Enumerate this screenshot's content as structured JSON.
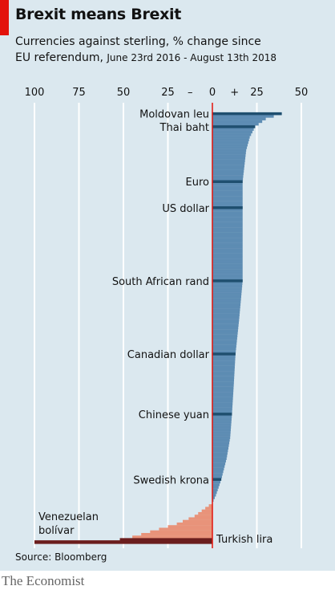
{
  "brand_color": "#e3120b",
  "gain_color": "#5d8cb3",
  "loss_color": "#e8937a",
  "highlight_gain_color": "#1f4f6f",
  "highlight_loss_color": "#6b1e1e",
  "footer": {
    "source": "Source: Bloomberg",
    "brand": "The Economist"
  },
  "chart_data": {
    "type": "bar",
    "title": "Brexit means Brexit",
    "subtitle": "Currencies against sterling, % change since",
    "subtitle_line2": "EU referendum,",
    "date_range": "June 23rd 2016 - August 13th 2018",
    "orientation": "horizontal",
    "sorted": "descending",
    "xlim": [
      -100,
      50
    ],
    "xticks": [
      -100,
      -75,
      -50,
      -25,
      0,
      25,
      50
    ],
    "xtick_labels": [
      "100",
      "75",
      "50",
      "25",
      "0",
      "25",
      "50"
    ],
    "sign_labels": [
      "–",
      "+"
    ],
    "grid": true,
    "bar_count": 165,
    "highlighted": [
      {
        "label": "Moldovan leu",
        "value": 39,
        "rank": 1
      },
      {
        "label": "Thai baht",
        "value": 24,
        "rank": 6
      },
      {
        "label": "Euro",
        "value": 17,
        "rank": 27
      },
      {
        "label": "US dollar",
        "value": 17,
        "rank": 37
      },
      {
        "label": "South African rand",
        "value": 17,
        "rank": 65
      },
      {
        "label": "Canadian dollar",
        "value": 13,
        "rank": 93
      },
      {
        "label": "Chinese yuan",
        "value": 11,
        "rank": 116
      },
      {
        "label": "Swedish krona",
        "value": 5,
        "rank": 141
      },
      {
        "label": "Turkish lira",
        "value": -52,
        "rank": 164
      },
      {
        "label": "Venezuelan bolívar",
        "value": -100,
        "rank": 165
      }
    ],
    "anchors": [
      [
        1,
        39
      ],
      [
        3,
        30
      ],
      [
        6,
        24
      ],
      [
        10,
        21
      ],
      [
        15,
        19
      ],
      [
        27,
        17
      ],
      [
        37,
        17
      ],
      [
        50,
        17
      ],
      [
        65,
        17
      ],
      [
        80,
        15
      ],
      [
        93,
        13
      ],
      [
        105,
        12
      ],
      [
        116,
        11
      ],
      [
        125,
        10
      ],
      [
        133,
        8
      ],
      [
        141,
        5
      ],
      [
        147,
        2
      ],
      [
        150,
        0
      ],
      [
        152,
        -4
      ],
      [
        155,
        -10
      ],
      [
        158,
        -20
      ],
      [
        161,
        -35
      ],
      [
        163,
        -45
      ],
      [
        164,
        -52
      ],
      [
        165,
        -100
      ]
    ]
  }
}
